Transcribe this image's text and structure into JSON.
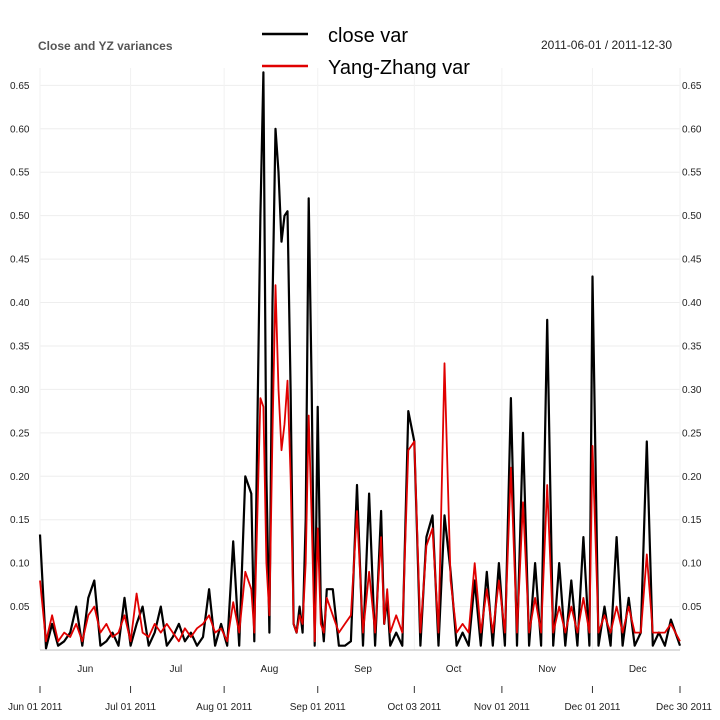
{
  "chart_data": {
    "type": "line",
    "title": "Close and YZ variances",
    "date_range": "2011-06-01 / 2011-12-30",
    "x_start": "2011-06-01",
    "x_end": "2011-12-30",
    "ylim": [
      0.0,
      0.67
    ],
    "y_ticks": [
      "0.05",
      "0.10",
      "0.15",
      "0.20",
      "0.25",
      "0.30",
      "0.35",
      "0.40",
      "0.45",
      "0.50",
      "0.55",
      "0.60",
      "0.65"
    ],
    "month_labels": [
      {
        "date": "2011-06-16",
        "label": "Jun"
      },
      {
        "date": "2011-07-16",
        "label": "Jul"
      },
      {
        "date": "2011-08-16",
        "label": "Aug"
      },
      {
        "date": "2011-09-16",
        "label": "Sep"
      },
      {
        "date": "2011-10-16",
        "label": "Oct"
      },
      {
        "date": "2011-11-16",
        "label": "Nov"
      },
      {
        "date": "2011-12-16",
        "label": "Dec"
      }
    ],
    "x_date_labels": [
      {
        "date": "2011-06-01",
        "label": "Jun 01 2011"
      },
      {
        "date": "2011-07-01",
        "label": "Jul 01 2011"
      },
      {
        "date": "2011-08-01",
        "label": "Aug 01 2011"
      },
      {
        "date": "2011-09-01",
        "label": "Sep 01 2011"
      },
      {
        "date": "2011-10-03",
        "label": "Oct 03 2011"
      },
      {
        "date": "2011-11-01",
        "label": "Nov 01 2011"
      },
      {
        "date": "2011-12-01",
        "label": "Dec 01 2011"
      },
      {
        "date": "2011-12-30",
        "label": "Dec 30 2011"
      }
    ],
    "legend_position": "top-center",
    "grid": true,
    "series": [
      {
        "name": "close var",
        "color": "#000000",
        "points": [
          [
            "2011-06-01",
            0.133
          ],
          [
            "2011-06-03",
            0.002
          ],
          [
            "2011-06-05",
            0.03
          ],
          [
            "2011-06-07",
            0.005
          ],
          [
            "2011-06-09",
            0.01
          ],
          [
            "2011-06-11",
            0.02
          ],
          [
            "2011-06-13",
            0.05
          ],
          [
            "2011-06-15",
            0.005
          ],
          [
            "2011-06-17",
            0.06
          ],
          [
            "2011-06-19",
            0.08
          ],
          [
            "2011-06-21",
            0.005
          ],
          [
            "2011-06-23",
            0.01
          ],
          [
            "2011-06-25",
            0.02
          ],
          [
            "2011-06-27",
            0.005
          ],
          [
            "2011-06-29",
            0.06
          ],
          [
            "2011-07-01",
            0.005
          ],
          [
            "2011-07-03",
            0.03
          ],
          [
            "2011-07-05",
            0.05
          ],
          [
            "2011-07-07",
            0.005
          ],
          [
            "2011-07-09",
            0.02
          ],
          [
            "2011-07-11",
            0.05
          ],
          [
            "2011-07-13",
            0.005
          ],
          [
            "2011-07-15",
            0.015
          ],
          [
            "2011-07-17",
            0.03
          ],
          [
            "2011-07-19",
            0.01
          ],
          [
            "2011-07-21",
            0.02
          ],
          [
            "2011-07-23",
            0.005
          ],
          [
            "2011-07-25",
            0.015
          ],
          [
            "2011-07-27",
            0.07
          ],
          [
            "2011-07-29",
            0.005
          ],
          [
            "2011-07-31",
            0.03
          ],
          [
            "2011-08-02",
            0.005
          ],
          [
            "2011-08-04",
            0.125
          ],
          [
            "2011-08-06",
            0.005
          ],
          [
            "2011-08-08",
            0.2
          ],
          [
            "2011-08-10",
            0.18
          ],
          [
            "2011-08-11",
            0.01
          ],
          [
            "2011-08-13",
            0.5
          ],
          [
            "2011-08-14",
            0.665
          ],
          [
            "2011-08-15",
            0.2
          ],
          [
            "2011-08-16",
            0.02
          ],
          [
            "2011-08-17",
            0.4
          ],
          [
            "2011-08-18",
            0.6
          ],
          [
            "2011-08-19",
            0.55
          ],
          [
            "2011-08-20",
            0.47
          ],
          [
            "2011-08-21",
            0.5
          ],
          [
            "2011-08-22",
            0.505
          ],
          [
            "2011-08-23",
            0.3
          ],
          [
            "2011-08-24",
            0.03
          ],
          [
            "2011-08-25",
            0.02
          ],
          [
            "2011-08-26",
            0.05
          ],
          [
            "2011-08-27",
            0.02
          ],
          [
            "2011-08-28",
            0.15
          ],
          [
            "2011-08-29",
            0.52
          ],
          [
            "2011-08-30",
            0.3
          ],
          [
            "2011-08-31",
            0.005
          ],
          [
            "2011-09-01",
            0.28
          ],
          [
            "2011-09-02",
            0.05
          ],
          [
            "2011-09-03",
            0.01
          ],
          [
            "2011-09-04",
            0.07
          ],
          [
            "2011-09-06",
            0.07
          ],
          [
            "2011-09-08",
            0.005
          ],
          [
            "2011-09-10",
            0.005
          ],
          [
            "2011-09-12",
            0.01
          ],
          [
            "2011-09-14",
            0.19
          ],
          [
            "2011-09-16",
            0.005
          ],
          [
            "2011-09-18",
            0.18
          ],
          [
            "2011-09-20",
            0.005
          ],
          [
            "2011-09-22",
            0.16
          ],
          [
            "2011-09-23",
            0.03
          ],
          [
            "2011-09-24",
            0.06
          ],
          [
            "2011-09-25",
            0.005
          ],
          [
            "2011-09-27",
            0.02
          ],
          [
            "2011-09-29",
            0.005
          ],
          [
            "2011-10-01",
            0.275
          ],
          [
            "2011-10-03",
            0.24
          ],
          [
            "2011-10-05",
            0.005
          ],
          [
            "2011-10-07",
            0.13
          ],
          [
            "2011-10-09",
            0.155
          ],
          [
            "2011-10-11",
            0.005
          ],
          [
            "2011-10-13",
            0.155
          ],
          [
            "2011-10-15",
            0.09
          ],
          [
            "2011-10-17",
            0.005
          ],
          [
            "2011-10-19",
            0.02
          ],
          [
            "2011-10-21",
            0.005
          ],
          [
            "2011-10-23",
            0.08
          ],
          [
            "2011-10-25",
            0.005
          ],
          [
            "2011-10-27",
            0.09
          ],
          [
            "2011-10-29",
            0.005
          ],
          [
            "2011-10-31",
            0.1
          ],
          [
            "2011-11-02",
            0.005
          ],
          [
            "2011-11-04",
            0.29
          ],
          [
            "2011-11-06",
            0.005
          ],
          [
            "2011-11-08",
            0.25
          ],
          [
            "2011-11-10",
            0.005
          ],
          [
            "2011-11-12",
            0.1
          ],
          [
            "2011-11-14",
            0.005
          ],
          [
            "2011-11-16",
            0.38
          ],
          [
            "2011-11-18",
            0.005
          ],
          [
            "2011-11-20",
            0.1
          ],
          [
            "2011-11-22",
            0.005
          ],
          [
            "2011-11-24",
            0.08
          ],
          [
            "2011-11-26",
            0.005
          ],
          [
            "2011-11-28",
            0.13
          ],
          [
            "2011-11-30",
            0.005
          ],
          [
            "2011-12-01",
            0.43
          ],
          [
            "2011-12-03",
            0.005
          ],
          [
            "2011-12-05",
            0.05
          ],
          [
            "2011-12-07",
            0.005
          ],
          [
            "2011-12-09",
            0.13
          ],
          [
            "2011-12-11",
            0.005
          ],
          [
            "2011-12-13",
            0.06
          ],
          [
            "2011-12-15",
            0.005
          ],
          [
            "2011-12-17",
            0.02
          ],
          [
            "2011-12-19",
            0.24
          ],
          [
            "2011-12-21",
            0.005
          ],
          [
            "2011-12-23",
            0.02
          ],
          [
            "2011-12-25",
            0.005
          ],
          [
            "2011-12-27",
            0.035
          ],
          [
            "2011-12-30",
            0.005
          ]
        ]
      },
      {
        "name": "Yang-Zhang var",
        "color": "#e00000",
        "points": [
          [
            "2011-06-01",
            0.08
          ],
          [
            "2011-06-03",
            0.01
          ],
          [
            "2011-06-05",
            0.04
          ],
          [
            "2011-06-07",
            0.01
          ],
          [
            "2011-06-09",
            0.02
          ],
          [
            "2011-06-11",
            0.015
          ],
          [
            "2011-06-13",
            0.03
          ],
          [
            "2011-06-15",
            0.01
          ],
          [
            "2011-06-17",
            0.04
          ],
          [
            "2011-06-19",
            0.05
          ],
          [
            "2011-06-21",
            0.02
          ],
          [
            "2011-06-23",
            0.03
          ],
          [
            "2011-06-25",
            0.015
          ],
          [
            "2011-06-27",
            0.02
          ],
          [
            "2011-06-29",
            0.04
          ],
          [
            "2011-07-01",
            0.01
          ],
          [
            "2011-07-03",
            0.065
          ],
          [
            "2011-07-05",
            0.02
          ],
          [
            "2011-07-07",
            0.015
          ],
          [
            "2011-07-09",
            0.03
          ],
          [
            "2011-07-11",
            0.02
          ],
          [
            "2011-07-13",
            0.03
          ],
          [
            "2011-07-15",
            0.02
          ],
          [
            "2011-07-17",
            0.01
          ],
          [
            "2011-07-19",
            0.025
          ],
          [
            "2011-07-21",
            0.015
          ],
          [
            "2011-07-23",
            0.025
          ],
          [
            "2011-07-25",
            0.03
          ],
          [
            "2011-07-27",
            0.04
          ],
          [
            "2011-07-29",
            0.02
          ],
          [
            "2011-07-31",
            0.025
          ],
          [
            "2011-08-02",
            0.01
          ],
          [
            "2011-08-04",
            0.055
          ],
          [
            "2011-08-06",
            0.02
          ],
          [
            "2011-08-08",
            0.09
          ],
          [
            "2011-08-10",
            0.07
          ],
          [
            "2011-08-11",
            0.02
          ],
          [
            "2011-08-13",
            0.29
          ],
          [
            "2011-08-14",
            0.28
          ],
          [
            "2011-08-15",
            0.1
          ],
          [
            "2011-08-16",
            0.04
          ],
          [
            "2011-08-17",
            0.25
          ],
          [
            "2011-08-18",
            0.42
          ],
          [
            "2011-08-19",
            0.3
          ],
          [
            "2011-08-20",
            0.23
          ],
          [
            "2011-08-21",
            0.26
          ],
          [
            "2011-08-22",
            0.31
          ],
          [
            "2011-08-23",
            0.2
          ],
          [
            "2011-08-24",
            0.03
          ],
          [
            "2011-08-25",
            0.02
          ],
          [
            "2011-08-26",
            0.04
          ],
          [
            "2011-08-27",
            0.03
          ],
          [
            "2011-08-28",
            0.1
          ],
          [
            "2011-08-29",
            0.27
          ],
          [
            "2011-08-30",
            0.15
          ],
          [
            "2011-08-31",
            0.01
          ],
          [
            "2011-09-01",
            0.14
          ],
          [
            "2011-09-02",
            0.03
          ],
          [
            "2011-09-03",
            0.02
          ],
          [
            "2011-09-04",
            0.06
          ],
          [
            "2011-09-06",
            0.04
          ],
          [
            "2011-09-08",
            0.02
          ],
          [
            "2011-09-10",
            0.03
          ],
          [
            "2011-09-12",
            0.04
          ],
          [
            "2011-09-14",
            0.16
          ],
          [
            "2011-09-16",
            0.02
          ],
          [
            "2011-09-18",
            0.09
          ],
          [
            "2011-09-20",
            0.02
          ],
          [
            "2011-09-22",
            0.13
          ],
          [
            "2011-09-23",
            0.03
          ],
          [
            "2011-09-24",
            0.07
          ],
          [
            "2011-09-25",
            0.02
          ],
          [
            "2011-09-27",
            0.04
          ],
          [
            "2011-09-29",
            0.02
          ],
          [
            "2011-10-01",
            0.23
          ],
          [
            "2011-10-03",
            0.24
          ],
          [
            "2011-10-05",
            0.02
          ],
          [
            "2011-10-07",
            0.12
          ],
          [
            "2011-10-09",
            0.14
          ],
          [
            "2011-10-11",
            0.02
          ],
          [
            "2011-10-13",
            0.33
          ],
          [
            "2011-10-15",
            0.08
          ],
          [
            "2011-10-17",
            0.02
          ],
          [
            "2011-10-19",
            0.03
          ],
          [
            "2011-10-21",
            0.02
          ],
          [
            "2011-10-23",
            0.1
          ],
          [
            "2011-10-25",
            0.02
          ],
          [
            "2011-10-27",
            0.07
          ],
          [
            "2011-10-29",
            0.02
          ],
          [
            "2011-10-31",
            0.08
          ],
          [
            "2011-11-02",
            0.02
          ],
          [
            "2011-11-04",
            0.21
          ],
          [
            "2011-11-06",
            0.02
          ],
          [
            "2011-11-08",
            0.17
          ],
          [
            "2011-11-10",
            0.02
          ],
          [
            "2011-11-12",
            0.06
          ],
          [
            "2011-11-14",
            0.02
          ],
          [
            "2011-11-16",
            0.19
          ],
          [
            "2011-11-18",
            0.02
          ],
          [
            "2011-11-20",
            0.05
          ],
          [
            "2011-11-22",
            0.02
          ],
          [
            "2011-11-24",
            0.05
          ],
          [
            "2011-11-26",
            0.02
          ],
          [
            "2011-11-28",
            0.06
          ],
          [
            "2011-11-30",
            0.02
          ],
          [
            "2011-12-01",
            0.235
          ],
          [
            "2011-12-03",
            0.02
          ],
          [
            "2011-12-05",
            0.04
          ],
          [
            "2011-12-07",
            0.02
          ],
          [
            "2011-12-09",
            0.05
          ],
          [
            "2011-12-11",
            0.02
          ],
          [
            "2011-12-13",
            0.05
          ],
          [
            "2011-12-15",
            0.02
          ],
          [
            "2011-12-17",
            0.02
          ],
          [
            "2011-12-19",
            0.11
          ],
          [
            "2011-12-21",
            0.02
          ],
          [
            "2011-12-23",
            0.02
          ],
          [
            "2011-12-25",
            0.02
          ],
          [
            "2011-12-27",
            0.03
          ],
          [
            "2011-12-30",
            0.01
          ]
        ]
      }
    ]
  }
}
